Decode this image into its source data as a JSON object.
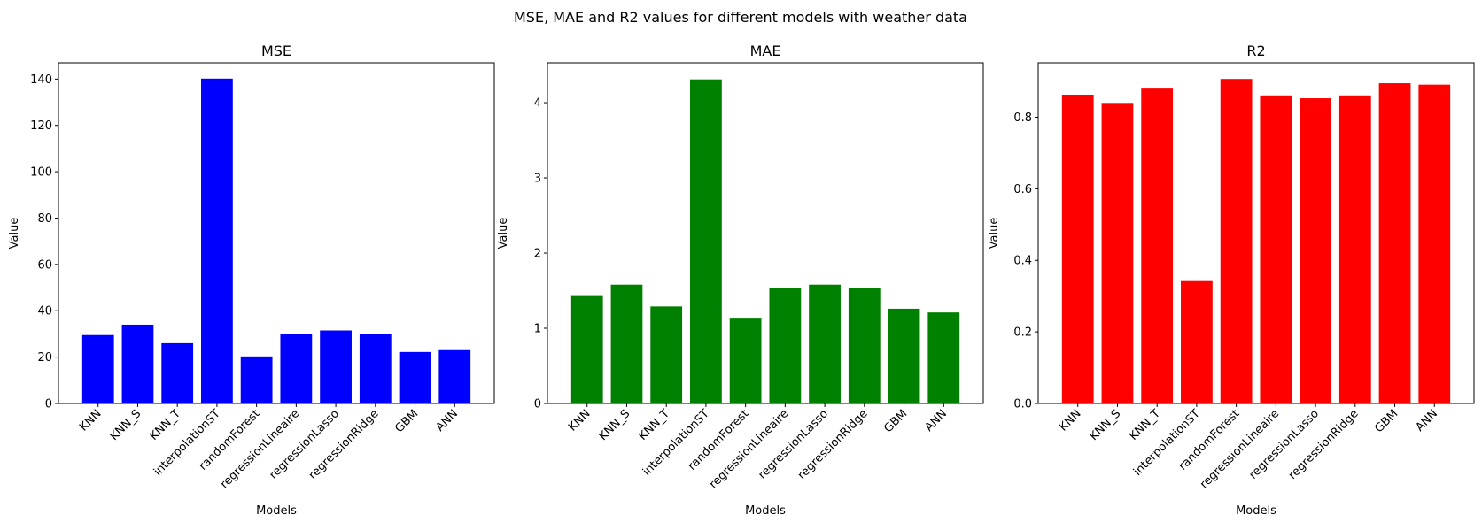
{
  "figure": {
    "suptitle": "MSE, MAE and R2 values for different models with weather data"
  },
  "chart_data": [
    {
      "type": "bar",
      "title": "MSE",
      "xlabel": "Models",
      "ylabel": "Value",
      "color": "#0000ff",
      "categories": [
        "KNN",
        "KNN_S",
        "KNN_T",
        "interpolationST",
        "randomForest",
        "regressionLineaire",
        "regressionLasso",
        "regressionRidge",
        "GBM",
        "ANN"
      ],
      "values": [
        29.5,
        34.0,
        26.0,
        140.2,
        20.3,
        29.8,
        31.5,
        29.8,
        22.2,
        23.0
      ],
      "ylim": [
        0,
        147
      ],
      "yticks": [
        0,
        20,
        40,
        60,
        80,
        100,
        120,
        140
      ],
      "ytick_labels": [
        "0",
        "20",
        "40",
        "60",
        "80",
        "100",
        "120",
        "140"
      ],
      "grid": false
    },
    {
      "type": "bar",
      "title": "MAE",
      "xlabel": "Models",
      "ylabel": "Value",
      "color": "#008000",
      "categories": [
        "KNN",
        "KNN_S",
        "KNN_T",
        "interpolationST",
        "randomForest",
        "regressionLineaire",
        "regressionLasso",
        "regressionRidge",
        "GBM",
        "ANN"
      ],
      "values": [
        1.44,
        1.58,
        1.29,
        4.31,
        1.14,
        1.53,
        1.58,
        1.53,
        1.26,
        1.21
      ],
      "ylim": [
        0,
        4.53
      ],
      "yticks": [
        0,
        1,
        2,
        3,
        4
      ],
      "ytick_labels": [
        "0",
        "1",
        "2",
        "3",
        "4"
      ],
      "grid": false
    },
    {
      "type": "bar",
      "title": "R2",
      "xlabel": "Models",
      "ylabel": "Value",
      "color": "#ff0000",
      "categories": [
        "KNN",
        "KNN_S",
        "KNN_T",
        "interpolationST",
        "randomForest",
        "regressionLineaire",
        "regressionLasso",
        "regressionRidge",
        "GBM",
        "ANN"
      ],
      "values": [
        0.863,
        0.84,
        0.88,
        0.342,
        0.907,
        0.861,
        0.853,
        0.861,
        0.895,
        0.891
      ],
      "ylim": [
        0,
        0.952
      ],
      "yticks": [
        0.0,
        0.2,
        0.4,
        0.6,
        0.8
      ],
      "ytick_labels": [
        "0.0",
        "0.2",
        "0.4",
        "0.6",
        "0.8"
      ],
      "grid": false
    }
  ]
}
